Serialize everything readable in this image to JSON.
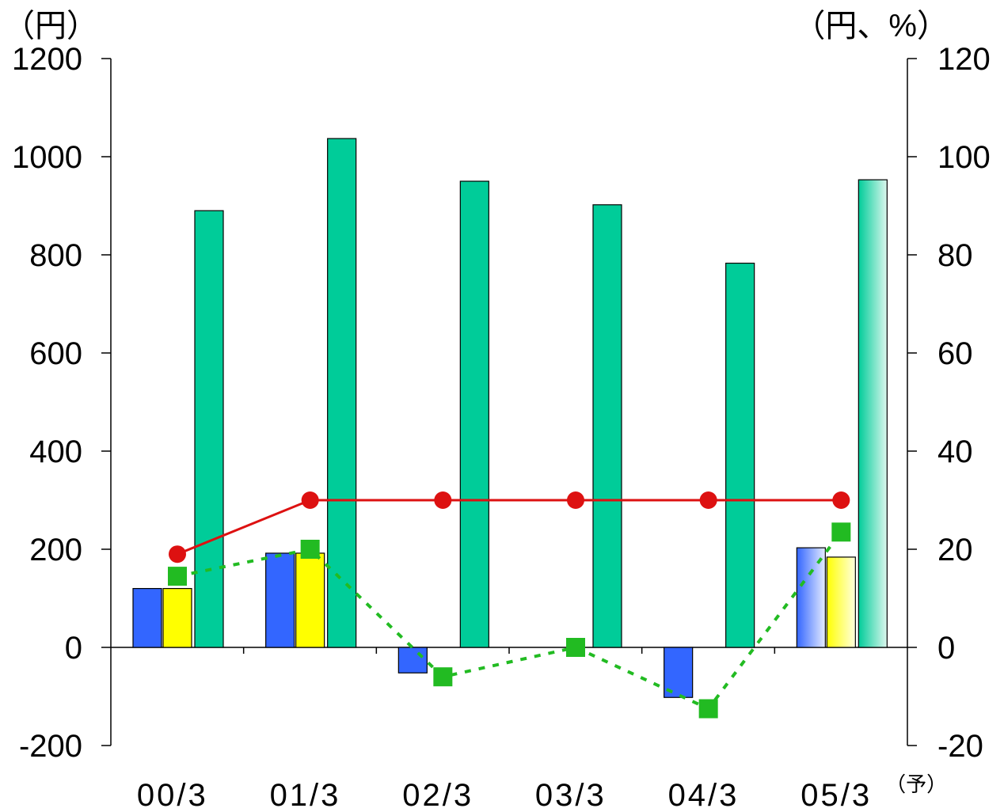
{
  "chart_data": {
    "type": "bar",
    "categories": [
      "00/3",
      "01/3",
      "02/3",
      "03/3",
      "04/3",
      "05/3"
    ],
    "forecast_note": "（予）",
    "left_axis": {
      "unit_label": "（円）",
      "ylim": [
        -200,
        1200
      ],
      "ticks": [
        "1200",
        "1000",
        "800",
        "600",
        "400",
        "200",
        "0",
        "-200"
      ]
    },
    "right_axis": {
      "unit_label": "（円、%）",
      "ylim": [
        -20,
        120
      ],
      "ticks": [
        "120",
        "100",
        "80",
        "60",
        "40",
        "20",
        "0",
        "-20"
      ]
    },
    "series": [
      {
        "kind": "bar",
        "axis": "left",
        "color": "#3366ff",
        "values": [
          120,
          192,
          -52,
          null,
          -102,
          203
        ]
      },
      {
        "kind": "bar",
        "axis": "left",
        "color": "#ffff00",
        "values": [
          120,
          192,
          null,
          null,
          null,
          184
        ]
      },
      {
        "kind": "bar",
        "axis": "left",
        "color": "#00cc99",
        "values": [
          890,
          1037,
          950,
          902,
          783,
          953
        ]
      },
      {
        "kind": "line",
        "axis": "right",
        "color": "#dd1111",
        "style": "solid",
        "marker": "circle",
        "values": [
          19,
          30,
          30,
          30,
          30,
          30
        ]
      },
      {
        "kind": "line",
        "axis": "right",
        "color": "#22bb22",
        "style": "dotted",
        "marker": "square",
        "values": [
          14.5,
          20,
          -6,
          0,
          -12.5,
          23.5
        ]
      }
    ],
    "forecast_category": "05/3",
    "grid": false,
    "legend": "none"
  }
}
